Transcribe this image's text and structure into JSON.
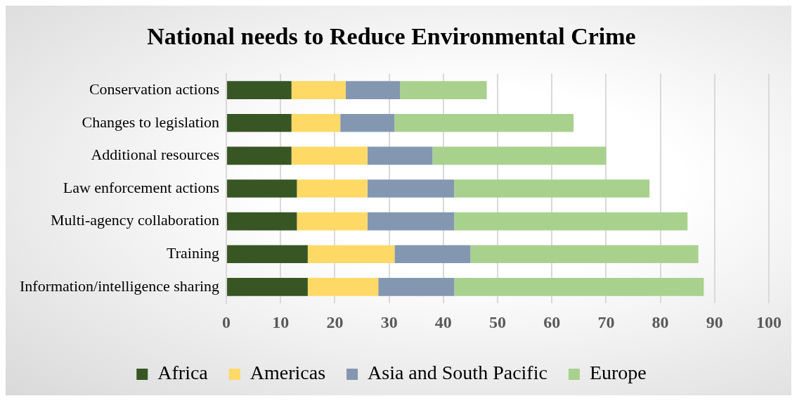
{
  "chart_data": {
    "type": "bar",
    "orientation": "horizontal",
    "stacked": true,
    "title": "National needs to Reduce Environmental Crime",
    "categories": [
      "Conservation actions",
      "Changes to legislation",
      "Additional resources",
      "Law enforcement actions",
      "Multi-agency collaboration",
      "Training",
      "Information/intelligence sharing"
    ],
    "series": [
      {
        "name": "Africa",
        "color": "#375623",
        "values": [
          12,
          12,
          12,
          13,
          13,
          15,
          15
        ]
      },
      {
        "name": "Americas",
        "color": "#ffd966",
        "values": [
          10,
          9,
          14,
          13,
          13,
          16,
          13
        ]
      },
      {
        "name": "Asia and South Pacific",
        "color": "#8497b0",
        "values": [
          10,
          10,
          12,
          16,
          16,
          14,
          14
        ]
      },
      {
        "name": "Europe",
        "color": "#a9d18e",
        "values": [
          16,
          33,
          32,
          36,
          43,
          42,
          46
        ]
      }
    ],
    "xlim": [
      0,
      100
    ],
    "xticks": [
      0,
      10,
      20,
      30,
      40,
      50,
      60,
      70,
      80,
      90,
      100
    ],
    "grid": "x",
    "legend": "bottom"
  }
}
